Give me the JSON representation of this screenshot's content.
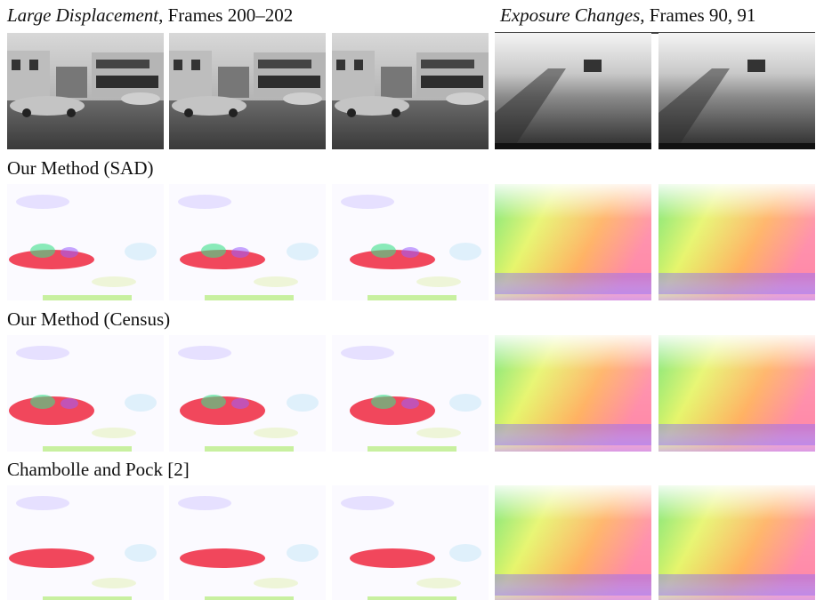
{
  "header_left": {
    "italic": "Large Displacement",
    "rest": ", Frames 200–202"
  },
  "header_right": {
    "italic": "Exposure Changes",
    "rest": ", Frames 90, 91"
  },
  "rows": [
    {
      "label": "Our Method (SAD)"
    },
    {
      "label": "Our Method (Census)"
    },
    {
      "label": "Chambolle and Pock [2]"
    }
  ]
}
